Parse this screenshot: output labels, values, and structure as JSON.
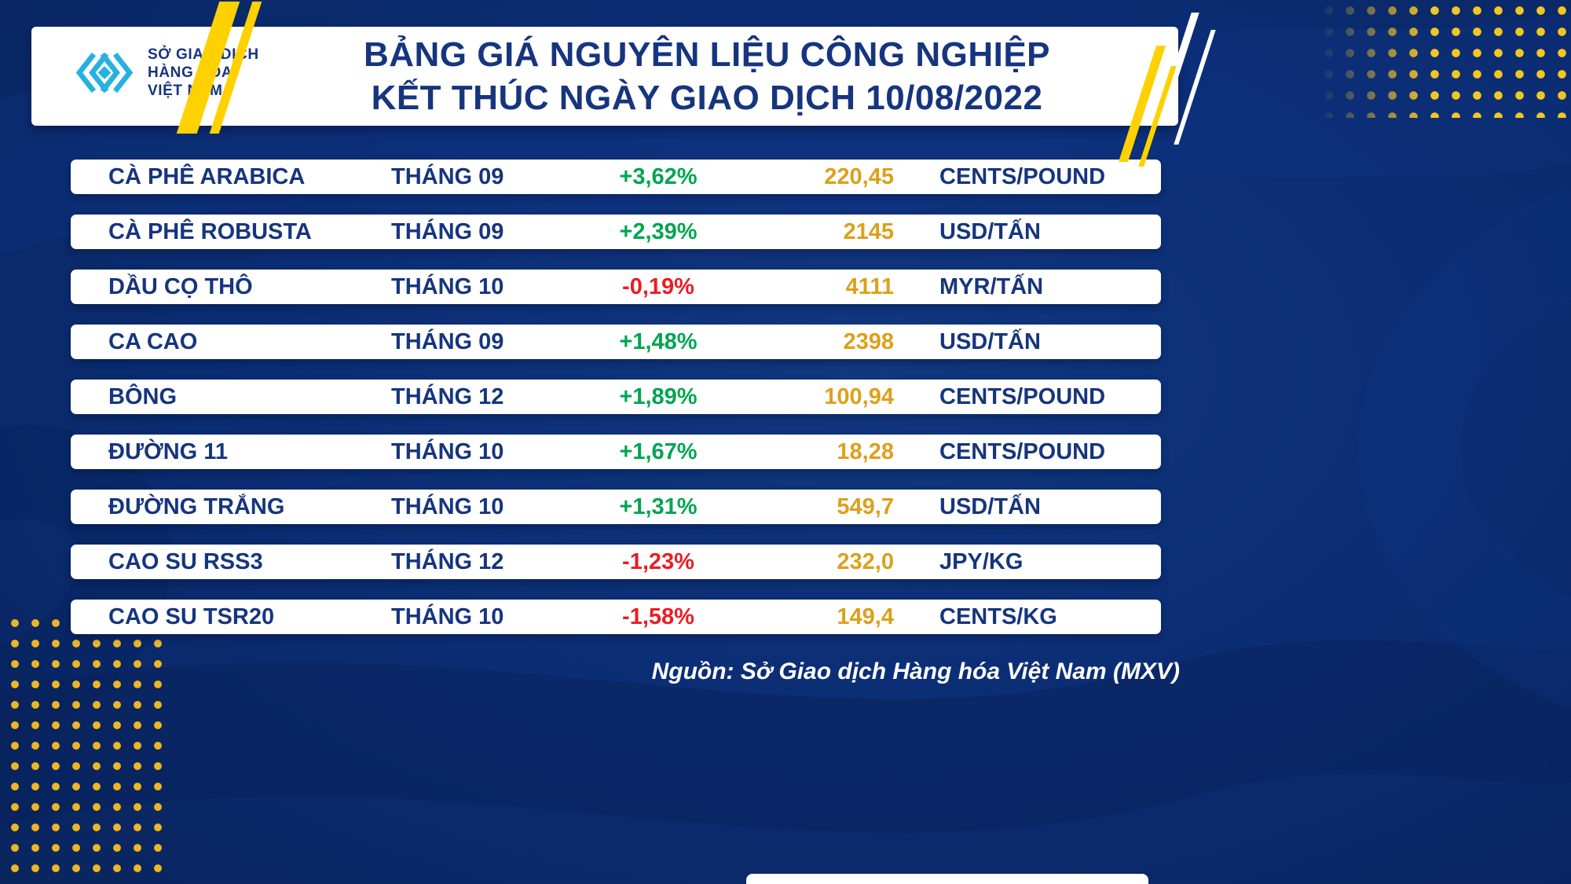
{
  "header": {
    "logo": {
      "line1": "SỞ GIAO DỊCH",
      "line2": "HÀNG HÓA",
      "line3": "VIỆT NAM"
    },
    "title_line1": "BẢNG GIÁ NGUYÊN LIỆU CÔNG NGHIỆP",
    "title_line2": "KẾT THÚC NGÀY GIAO DỊCH 10/08/2022"
  },
  "chart_data": {
    "type": "table",
    "title": "BẢNG GIÁ NGUYÊN LIỆU CÔNG NGHIỆP KẾT THÚC NGÀY GIAO DỊCH 10/08/2022",
    "columns": [
      "commodity",
      "contract_month",
      "change_percent",
      "price",
      "unit"
    ],
    "rows": [
      {
        "name": "CÀ PHÊ ARABICA",
        "month": "THÁNG 09",
        "change": "+3,62%",
        "price": "220,45",
        "unit": "CENTS/POUND"
      },
      {
        "name": "CÀ PHÊ ROBUSTA",
        "month": "THÁNG 09",
        "change": "+2,39%",
        "price": "2145",
        "unit": "USD/TẤN"
      },
      {
        "name": "DẦU CỌ THÔ",
        "month": "THÁNG 10",
        "change": "-0,19%",
        "price": "4111",
        "unit": "MYR/TẤN"
      },
      {
        "name": "CA CAO",
        "month": "THÁNG 09",
        "change": "+1,48%",
        "price": "2398",
        "unit": "USD/TẤN"
      },
      {
        "name": "BÔNG",
        "month": "THÁNG 12",
        "change": "+1,89%",
        "price": "100,94",
        "unit": "CENTS/POUND"
      },
      {
        "name": "ĐƯỜNG 11",
        "month": "THÁNG 10",
        "change": "+1,67%",
        "price": "18,28",
        "unit": "CENTS/POUND"
      },
      {
        "name": "ĐƯỜNG TRẮNG",
        "month": "THÁNG 10",
        "change": "+1,31%",
        "price": "549,7",
        "unit": "USD/TẤN"
      },
      {
        "name": "CAO SU RSS3",
        "month": "THÁNG 12",
        "change": "-1,23%",
        "price": "232,0",
        "unit": "JPY/KG"
      },
      {
        "name": "CAO SU TSR20",
        "month": "THÁNG 10",
        "change": "-1,58%",
        "price": "149,4",
        "unit": "CENTS/KG"
      }
    ],
    "legend_position": "none",
    "grid": false,
    "source": "Nguồn: Sở Giao dịch Hàng hóa Việt Nam (MXV)"
  },
  "colors": {
    "background_navy": "#0b2d74",
    "text_navy": "#16357e",
    "positive_green": "#00a551",
    "negative_red": "#ec1c24",
    "price_gold": "#dda01b",
    "decor_yellow": "#ffd100",
    "dots_gold": "#edb622",
    "logo_cyan": "#27b1e0",
    "card_white": "#ffffff"
  }
}
